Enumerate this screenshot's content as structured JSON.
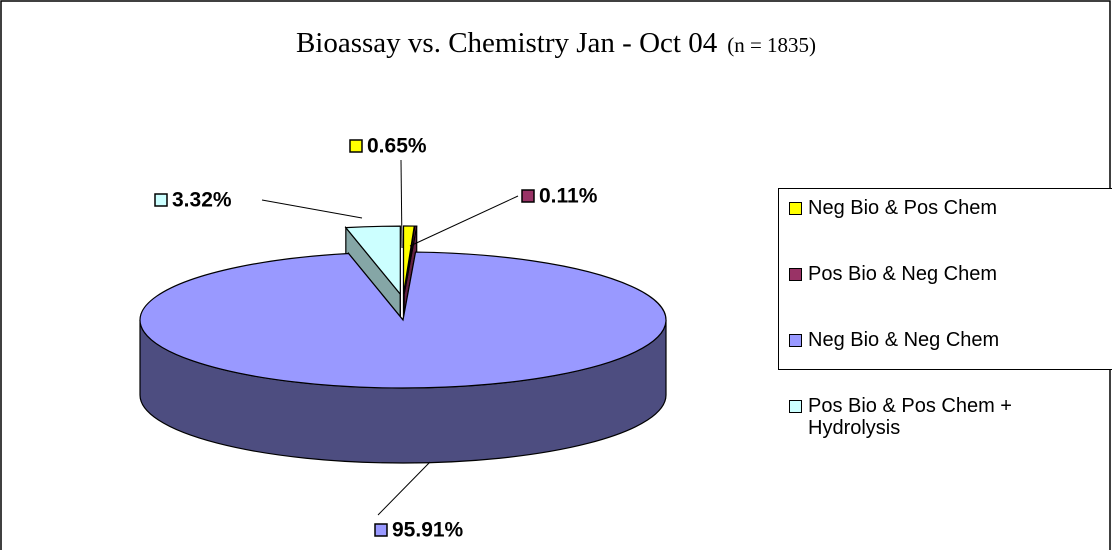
{
  "chart_data": {
    "type": "pie",
    "title": "Bioassay vs. Chemistry Jan - Oct 04",
    "subtitle": "(n = 1835)",
    "categories": [
      "Neg Bio & Pos Chem",
      "Pos Bio & Neg Chem",
      "Neg Bio & Neg Chem",
      "Pos Bio & Pos Chem + Hydrolysis"
    ],
    "values": [
      0.65,
      0.11,
      95.91,
      3.32
    ],
    "value_labels": [
      "0.65%",
      "0.11%",
      "95.91%",
      "3.32%"
    ],
    "colors": [
      "#ffff00",
      "#993366",
      "#9999ff",
      "#ccffff"
    ],
    "legend": "right"
  }
}
